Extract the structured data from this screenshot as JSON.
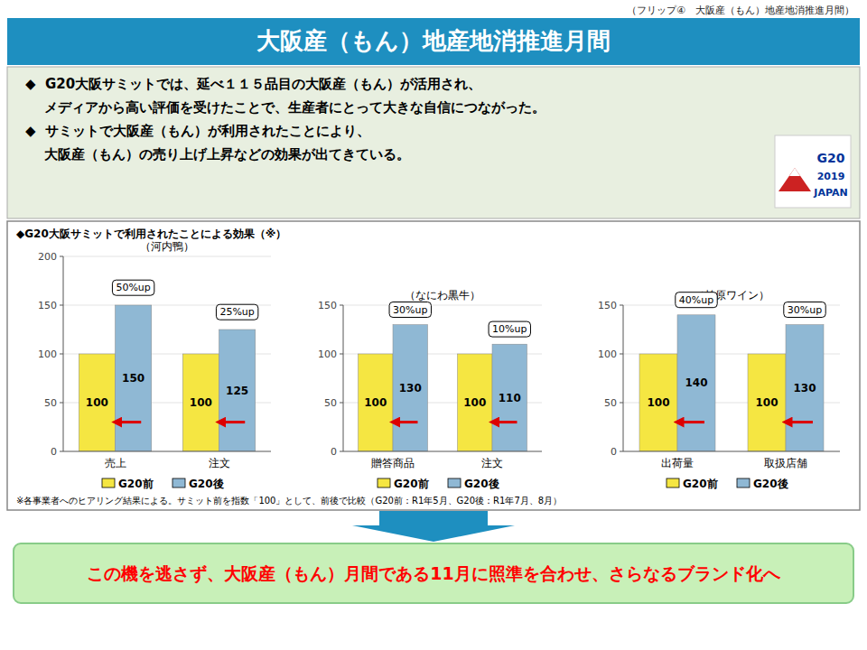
{
  "header": "（フリップ④　大阪産（もん）地産地消推進月間）",
  "title": "大阪産（もん）地産地消推進月間",
  "bullets": [
    "◆  G20大阪サミットでは、延べ１１５品目の大阪産（もん）が活用され、",
    "    メディアから高い評価を受けたことで、生産者にとって大きな自信につながった。",
    "◆  サミットで大阪産（もん）が利用されたことにより、",
    "    大阪産（もん）の売り上げ上昇などの効果が出てきている。"
  ],
  "logo": [
    "G20",
    "2019",
    "JAPAN"
  ],
  "charts_title": "◆G20大阪サミットで利用されたことによる効果（※）",
  "footnote": "※各事業者へのヒアリング結果による。サミット前を指数「100」として、前後で比較（G20前：R1年5月、G20後：R1年7月、8月）",
  "bottom_text": "この機を逃さず、大阪産（もん）月間である11月に照準を合わせ、さらなるブランド化へ",
  "chart_data": [
    {
      "type": "bar",
      "title": "（河内鴨）",
      "categories": [
        "売上",
        "注文"
      ],
      "series": [
        {
          "name": "G20前",
          "color": "#F5E642",
          "values": [
            100,
            100
          ]
        },
        {
          "name": "G20後",
          "color": "#8FB8D4",
          "values": [
            150,
            125
          ]
        }
      ],
      "annotations": [
        "50%up",
        "25%up"
      ],
      "ylim": [
        0,
        200
      ],
      "yticks": [
        0,
        50,
        100,
        150,
        200
      ],
      "grid": true,
      "data_labels": true,
      "legend": "bottom"
    },
    {
      "type": "bar",
      "title": "（なにわ黒牛）",
      "categories": [
        "贈答商品",
        "注文"
      ],
      "series": [
        {
          "name": "G20前",
          "color": "#F5E642",
          "values": [
            100,
            100
          ]
        },
        {
          "name": "G20後",
          "color": "#8FB8D4",
          "values": [
            130,
            110
          ]
        }
      ],
      "annotations": [
        "30%up",
        "10%up"
      ],
      "ylim": [
        0,
        150
      ],
      "yticks": [
        0,
        50,
        100,
        150
      ],
      "grid": true,
      "data_labels": true,
      "legend": "bottom"
    },
    {
      "type": "bar",
      "title": "（柏原ワイン）",
      "categories": [
        "出荷量",
        "取扱店舗"
      ],
      "series": [
        {
          "name": "G20前",
          "color": "#F5E642",
          "values": [
            100,
            100
          ]
        },
        {
          "name": "G20後",
          "color": "#8FB8D4",
          "values": [
            140,
            130
          ]
        }
      ],
      "annotations": [
        "40%up",
        "30%up"
      ],
      "ylim": [
        0,
        150
      ],
      "yticks": [
        0,
        50,
        100,
        150
      ],
      "grid": true,
      "data_labels": true,
      "legend": "bottom"
    }
  ]
}
